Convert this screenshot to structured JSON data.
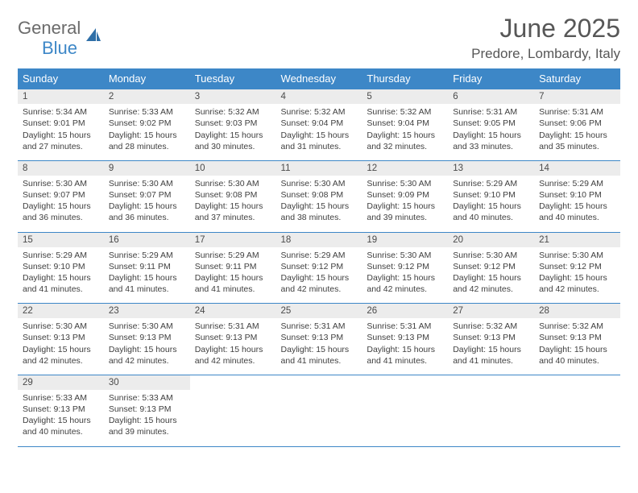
{
  "logo": {
    "text_gray": "General",
    "text_blue": "Blue",
    "icon_name": "sail-icon",
    "icon_color": "#2f6fa8"
  },
  "header": {
    "title": "June 2025",
    "location": "Predore, Lombardy, Italy"
  },
  "colors": {
    "header_bg": "#3d87c7",
    "header_text": "#ffffff",
    "daynum_bg": "#ececec",
    "rule": "#3d87c7",
    "body_text": "#3f3f3f",
    "title_text": "#575757"
  },
  "weekdays": [
    "Sunday",
    "Monday",
    "Tuesday",
    "Wednesday",
    "Thursday",
    "Friday",
    "Saturday"
  ],
  "weeks": [
    {
      "days": [
        {
          "n": "1",
          "sunrise": "Sunrise: 5:34 AM",
          "sunset": "Sunset: 9:01 PM",
          "d1": "Daylight: 15 hours",
          "d2": "and 27 minutes."
        },
        {
          "n": "2",
          "sunrise": "Sunrise: 5:33 AM",
          "sunset": "Sunset: 9:02 PM",
          "d1": "Daylight: 15 hours",
          "d2": "and 28 minutes."
        },
        {
          "n": "3",
          "sunrise": "Sunrise: 5:32 AM",
          "sunset": "Sunset: 9:03 PM",
          "d1": "Daylight: 15 hours",
          "d2": "and 30 minutes."
        },
        {
          "n": "4",
          "sunrise": "Sunrise: 5:32 AM",
          "sunset": "Sunset: 9:04 PM",
          "d1": "Daylight: 15 hours",
          "d2": "and 31 minutes."
        },
        {
          "n": "5",
          "sunrise": "Sunrise: 5:32 AM",
          "sunset": "Sunset: 9:04 PM",
          "d1": "Daylight: 15 hours",
          "d2": "and 32 minutes."
        },
        {
          "n": "6",
          "sunrise": "Sunrise: 5:31 AM",
          "sunset": "Sunset: 9:05 PM",
          "d1": "Daylight: 15 hours",
          "d2": "and 33 minutes."
        },
        {
          "n": "7",
          "sunrise": "Sunrise: 5:31 AM",
          "sunset": "Sunset: 9:06 PM",
          "d1": "Daylight: 15 hours",
          "d2": "and 35 minutes."
        }
      ]
    },
    {
      "days": [
        {
          "n": "8",
          "sunrise": "Sunrise: 5:30 AM",
          "sunset": "Sunset: 9:07 PM",
          "d1": "Daylight: 15 hours",
          "d2": "and 36 minutes."
        },
        {
          "n": "9",
          "sunrise": "Sunrise: 5:30 AM",
          "sunset": "Sunset: 9:07 PM",
          "d1": "Daylight: 15 hours",
          "d2": "and 36 minutes."
        },
        {
          "n": "10",
          "sunrise": "Sunrise: 5:30 AM",
          "sunset": "Sunset: 9:08 PM",
          "d1": "Daylight: 15 hours",
          "d2": "and 37 minutes."
        },
        {
          "n": "11",
          "sunrise": "Sunrise: 5:30 AM",
          "sunset": "Sunset: 9:08 PM",
          "d1": "Daylight: 15 hours",
          "d2": "and 38 minutes."
        },
        {
          "n": "12",
          "sunrise": "Sunrise: 5:30 AM",
          "sunset": "Sunset: 9:09 PM",
          "d1": "Daylight: 15 hours",
          "d2": "and 39 minutes."
        },
        {
          "n": "13",
          "sunrise": "Sunrise: 5:29 AM",
          "sunset": "Sunset: 9:10 PM",
          "d1": "Daylight: 15 hours",
          "d2": "and 40 minutes."
        },
        {
          "n": "14",
          "sunrise": "Sunrise: 5:29 AM",
          "sunset": "Sunset: 9:10 PM",
          "d1": "Daylight: 15 hours",
          "d2": "and 40 minutes."
        }
      ]
    },
    {
      "days": [
        {
          "n": "15",
          "sunrise": "Sunrise: 5:29 AM",
          "sunset": "Sunset: 9:10 PM",
          "d1": "Daylight: 15 hours",
          "d2": "and 41 minutes."
        },
        {
          "n": "16",
          "sunrise": "Sunrise: 5:29 AM",
          "sunset": "Sunset: 9:11 PM",
          "d1": "Daylight: 15 hours",
          "d2": "and 41 minutes."
        },
        {
          "n": "17",
          "sunrise": "Sunrise: 5:29 AM",
          "sunset": "Sunset: 9:11 PM",
          "d1": "Daylight: 15 hours",
          "d2": "and 41 minutes."
        },
        {
          "n": "18",
          "sunrise": "Sunrise: 5:29 AM",
          "sunset": "Sunset: 9:12 PM",
          "d1": "Daylight: 15 hours",
          "d2": "and 42 minutes."
        },
        {
          "n": "19",
          "sunrise": "Sunrise: 5:30 AM",
          "sunset": "Sunset: 9:12 PM",
          "d1": "Daylight: 15 hours",
          "d2": "and 42 minutes."
        },
        {
          "n": "20",
          "sunrise": "Sunrise: 5:30 AM",
          "sunset": "Sunset: 9:12 PM",
          "d1": "Daylight: 15 hours",
          "d2": "and 42 minutes."
        },
        {
          "n": "21",
          "sunrise": "Sunrise: 5:30 AM",
          "sunset": "Sunset: 9:12 PM",
          "d1": "Daylight: 15 hours",
          "d2": "and 42 minutes."
        }
      ]
    },
    {
      "days": [
        {
          "n": "22",
          "sunrise": "Sunrise: 5:30 AM",
          "sunset": "Sunset: 9:13 PM",
          "d1": "Daylight: 15 hours",
          "d2": "and 42 minutes."
        },
        {
          "n": "23",
          "sunrise": "Sunrise: 5:30 AM",
          "sunset": "Sunset: 9:13 PM",
          "d1": "Daylight: 15 hours",
          "d2": "and 42 minutes."
        },
        {
          "n": "24",
          "sunrise": "Sunrise: 5:31 AM",
          "sunset": "Sunset: 9:13 PM",
          "d1": "Daylight: 15 hours",
          "d2": "and 42 minutes."
        },
        {
          "n": "25",
          "sunrise": "Sunrise: 5:31 AM",
          "sunset": "Sunset: 9:13 PM",
          "d1": "Daylight: 15 hours",
          "d2": "and 41 minutes."
        },
        {
          "n": "26",
          "sunrise": "Sunrise: 5:31 AM",
          "sunset": "Sunset: 9:13 PM",
          "d1": "Daylight: 15 hours",
          "d2": "and 41 minutes."
        },
        {
          "n": "27",
          "sunrise": "Sunrise: 5:32 AM",
          "sunset": "Sunset: 9:13 PM",
          "d1": "Daylight: 15 hours",
          "d2": "and 41 minutes."
        },
        {
          "n": "28",
          "sunrise": "Sunrise: 5:32 AM",
          "sunset": "Sunset: 9:13 PM",
          "d1": "Daylight: 15 hours",
          "d2": "and 40 minutes."
        }
      ]
    },
    {
      "days": [
        {
          "n": "29",
          "sunrise": "Sunrise: 5:33 AM",
          "sunset": "Sunset: 9:13 PM",
          "d1": "Daylight: 15 hours",
          "d2": "and 40 minutes."
        },
        {
          "n": "30",
          "sunrise": "Sunrise: 5:33 AM",
          "sunset": "Sunset: 9:13 PM",
          "d1": "Daylight: 15 hours",
          "d2": "and 39 minutes."
        },
        null,
        null,
        null,
        null,
        null
      ]
    }
  ]
}
